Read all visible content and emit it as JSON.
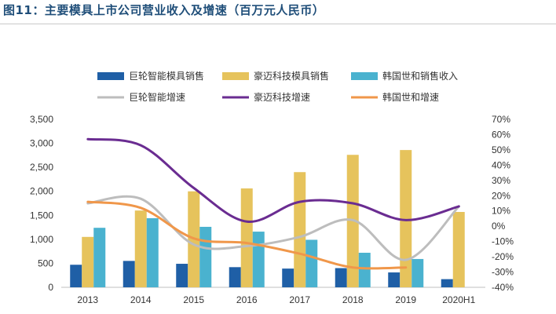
{
  "figure_title": "图11：主要模具上市公司营业收入及增速（百万元人民币）",
  "chart_data": {
    "type": "bar",
    "categories": [
      "2013",
      "2014",
      "2015",
      "2016",
      "2017",
      "2018",
      "2019",
      "2020H1"
    ],
    "series": [
      {
        "name": "巨轮智能模具销售",
        "kind": "bar",
        "axis": "left",
        "color": "#1f5fa6",
        "values": [
          470,
          550,
          490,
          420,
          390,
          400,
          310,
          170
        ]
      },
      {
        "name": "豪迈科技模具销售",
        "kind": "bar",
        "axis": "left",
        "color": "#e6c35c",
        "values": [
          1050,
          1600,
          2000,
          2060,
          2400,
          2760,
          2860,
          1570
        ]
      },
      {
        "name": "韩国世和销售收入",
        "kind": "bar",
        "axis": "left",
        "color": "#4ab2cf",
        "values": [
          1240,
          1440,
          1260,
          1160,
          990,
          720,
          590,
          null
        ]
      },
      {
        "name": "巨轮智能增速",
        "kind": "line",
        "axis": "right",
        "color": "#bdbdbd",
        "values": [
          15,
          18,
          -12,
          -13,
          -7,
          4,
          -22,
          13
        ]
      },
      {
        "name": "豪迈科技增速",
        "kind": "line",
        "axis": "right",
        "color": "#6a2c91",
        "values": [
          57,
          53,
          25,
          3,
          16,
          15,
          4,
          13
        ]
      },
      {
        "name": "韩国世和增速",
        "kind": "line",
        "axis": "right",
        "color": "#f0974a",
        "values": [
          16,
          12,
          -8,
          -11,
          -18,
          -27,
          -27,
          null
        ]
      }
    ],
    "y_left": {
      "ylim": [
        0,
        3500
      ],
      "ticks": [
        "0",
        "500",
        "1,000",
        "1,500",
        "2,000",
        "2,500",
        "3,000",
        "3,500"
      ]
    },
    "y_right": {
      "ylim": [
        -40,
        70
      ],
      "ticks": [
        "-40%",
        "-30%",
        "-20%",
        "-10%",
        "0%",
        "10%",
        "20%",
        "30%",
        "40%",
        "50%",
        "60%",
        "70%"
      ]
    },
    "grid": false,
    "legend_position": "top"
  }
}
